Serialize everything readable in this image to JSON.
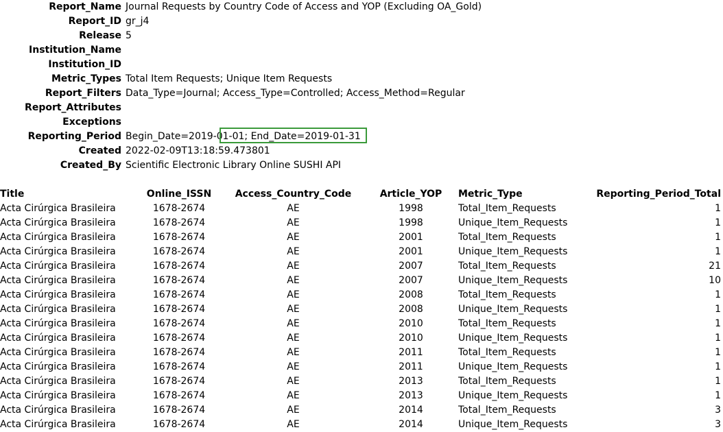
{
  "header": {
    "rows": [
      {
        "label": "Report_Name",
        "value": "Journal Requests by Country Code of Access and YOP (Excluding OA_Gold)"
      },
      {
        "label": "Report_ID",
        "value": "gr_j4"
      },
      {
        "label": "Release",
        "value": "5"
      },
      {
        "label": "Institution_Name",
        "value": ""
      },
      {
        "label": "Institution_ID",
        "value": ""
      },
      {
        "label": "Metric_Types",
        "value": "Total Item Requests; Unique Item Requests"
      },
      {
        "label": "Report_Filters",
        "value": "Data_Type=Journal; Access_Type=Controlled; Access_Method=Regular"
      },
      {
        "label": "Report_Attributes",
        "value": ""
      },
      {
        "label": "Exceptions",
        "value": ""
      },
      {
        "label": "Reporting_Period",
        "value": "Begin_Date=2019-01-01; End_Date=2019-01-31"
      },
      {
        "label": "Created",
        "value": "2022-02-09T13:18:59.473801"
      },
      {
        "label": "Created_By",
        "value": "Scientific Electronic Library Online SUSHI API"
      }
    ]
  },
  "table": {
    "columns": [
      "Title",
      "Online_ISSN",
      "Access_Country_Code",
      "Article_YOP",
      "Metric_Type",
      "Reporting_Period_Total"
    ],
    "rows": [
      [
        "Acta Cirúrgica Brasileira",
        "1678-2674",
        "AE",
        "1998",
        "Total_Item_Requests",
        "1"
      ],
      [
        "Acta Cirúrgica Brasileira",
        "1678-2674",
        "AE",
        "1998",
        "Unique_Item_Requests",
        "1"
      ],
      [
        "Acta Cirúrgica Brasileira",
        "1678-2674",
        "AE",
        "2001",
        "Total_Item_Requests",
        "1"
      ],
      [
        "Acta Cirúrgica Brasileira",
        "1678-2674",
        "AE",
        "2001",
        "Unique_Item_Requests",
        "1"
      ],
      [
        "Acta Cirúrgica Brasileira",
        "1678-2674",
        "AE",
        "2007",
        "Total_Item_Requests",
        "21"
      ],
      [
        "Acta Cirúrgica Brasileira",
        "1678-2674",
        "AE",
        "2007",
        "Unique_Item_Requests",
        "10"
      ],
      [
        "Acta Cirúrgica Brasileira",
        "1678-2674",
        "AE",
        "2008",
        "Total_Item_Requests",
        "1"
      ],
      [
        "Acta Cirúrgica Brasileira",
        "1678-2674",
        "AE",
        "2008",
        "Unique_Item_Requests",
        "1"
      ],
      [
        "Acta Cirúrgica Brasileira",
        "1678-2674",
        "AE",
        "2010",
        "Total_Item_Requests",
        "1"
      ],
      [
        "Acta Cirúrgica Brasileira",
        "1678-2674",
        "AE",
        "2010",
        "Unique_Item_Requests",
        "1"
      ],
      [
        "Acta Cirúrgica Brasileira",
        "1678-2674",
        "AE",
        "2011",
        "Total_Item_Requests",
        "1"
      ],
      [
        "Acta Cirúrgica Brasileira",
        "1678-2674",
        "AE",
        "2011",
        "Unique_Item_Requests",
        "1"
      ],
      [
        "Acta Cirúrgica Brasileira",
        "1678-2674",
        "AE",
        "2013",
        "Total_Item_Requests",
        "1"
      ],
      [
        "Acta Cirúrgica Brasileira",
        "1678-2674",
        "AE",
        "2013",
        "Unique_Item_Requests",
        "1"
      ],
      [
        "Acta Cirúrgica Brasileira",
        "1678-2674",
        "AE",
        "2014",
        "Total_Item_Requests",
        "3"
      ],
      [
        "Acta Cirúrgica Brasileira",
        "1678-2674",
        "AE",
        "2014",
        "Unique_Item_Requests",
        "3"
      ]
    ]
  },
  "colors": {
    "cell_cursor": "#3a9a3a"
  }
}
